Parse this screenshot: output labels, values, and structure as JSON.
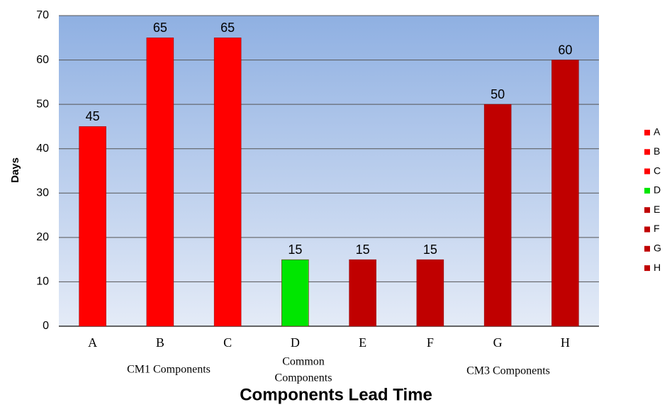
{
  "chart_data": {
    "type": "bar",
    "title": "Components Lead Time",
    "y_label": "Days",
    "categories": [
      "A",
      "B",
      "C",
      "D",
      "E",
      "F",
      "G",
      "H"
    ],
    "values": [
      45,
      65,
      65,
      15,
      15,
      15,
      50,
      60
    ],
    "colors": [
      "#ff0000",
      "#ff0000",
      "#ff0000",
      "#00e600",
      "#c00000",
      "#c00000",
      "#c00000",
      "#c00000"
    ],
    "groups": [
      {
        "lines": [
          "CM1 Components"
        ]
      },
      {
        "lines": [
          "Common",
          "Components"
        ]
      },
      {
        "lines": [
          "CM3 Components"
        ]
      }
    ],
    "ylim": [
      0,
      70
    ],
    "yticks": [
      0,
      10,
      20,
      30,
      40,
      50,
      60,
      70
    ],
    "grid": true,
    "legend": "right"
  }
}
